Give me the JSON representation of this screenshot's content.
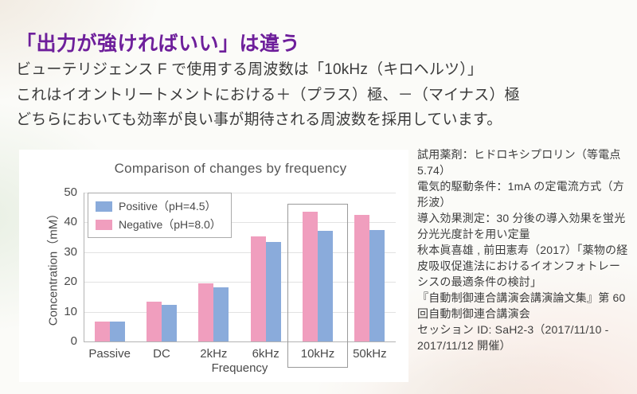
{
  "heading": {
    "text": "「出力が強ければいい」は違う"
  },
  "intro": {
    "lines": [
      "ビューテリジェンス F で使用する周波数は「10kHz（キロヘルツ）」",
      "これはイオントリートメントにおける＋（プラス）極、－（マイナス）極",
      "どちらにおいても効率が良い事が期待される周波数を採用しています。"
    ]
  },
  "chart_data": {
    "type": "bar",
    "title": "Comparison of changes by frequency",
    "xlabel": "Frequency",
    "ylabel": "Concentration（mM）",
    "categories": [
      "Passive",
      "DC",
      "2kHz",
      "6kHz",
      "10kHz",
      "50kHz"
    ],
    "series": [
      {
        "key": "negative",
        "name": "Negative（pH=8.0）",
        "color": "#f09ebe",
        "values": [
          6.8,
          13.5,
          19.5,
          35.2,
          43.5,
          42.5
        ]
      },
      {
        "key": "positive",
        "name": "Positive（pH=4.5）",
        "color": "#8aabdb",
        "values": [
          6.8,
          12.2,
          18.2,
          33.3,
          37.2,
          37.3
        ]
      }
    ],
    "legend": [
      {
        "label": "Positive（pH=4.5）",
        "color": "#8aabdb"
      },
      {
        "label": "Negative（pH=8.0）",
        "color": "#f09ebe"
      }
    ],
    "ylim": [
      0,
      50
    ],
    "yticks": [
      0,
      10,
      20,
      30,
      40,
      50
    ],
    "grid": true,
    "legend_position": "top-left",
    "highlight_category": "10kHz"
  },
  "notes": {
    "lines": [
      "試用薬剤：ヒドロキシプロリン（等電点 5.74）",
      "電気的駆動条件：1mA の定電流方式（方形波）",
      "導入効果測定：30 分後の導入効果を蛍光分光光度計を用い定量",
      "秋本眞喜雄 , 前田憲寿（2017）「薬物の経皮吸収促進法におけるイオンフォトレーシスの最適条件の検討」",
      "『自動制御連合講演会講演論文集』第 60 回自動制御連合講演会",
      "セッション ID: SaH2-3（2017/11/10 - 2017/11/12 開催）"
    ]
  },
  "colors": {
    "accent_purple": "#6e1f9b",
    "bar_positive_blue": "#8aabdb",
    "bar_negative_pink": "#f09ebe"
  }
}
